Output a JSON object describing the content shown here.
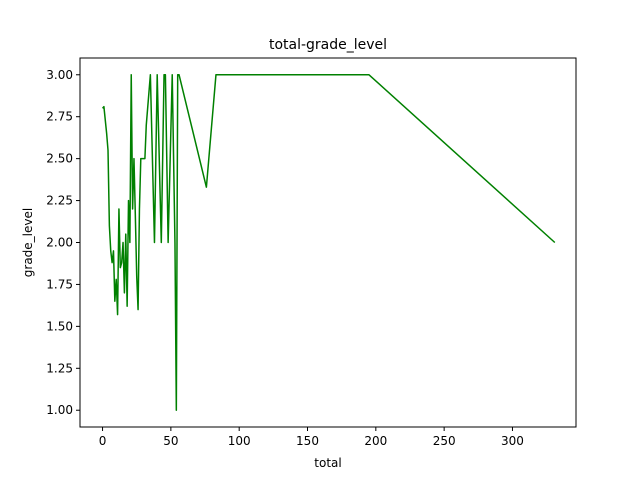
{
  "chart_data": {
    "type": "line",
    "title": "total-grade_level",
    "xlabel": "total",
    "ylabel": "grade_level",
    "xlim": [
      -16.5,
      346.5
    ],
    "ylim": [
      0.9,
      3.1
    ],
    "xticks": [
      0,
      50,
      100,
      150,
      200,
      250,
      300
    ],
    "xtick_labels": [
      "0",
      "50",
      "100",
      "150",
      "200",
      "250",
      "300"
    ],
    "yticks": [
      1.0,
      1.25,
      1.5,
      1.75,
      2.0,
      2.25,
      2.5,
      2.75,
      3.0
    ],
    "ytick_labels": [
      "1.00",
      "1.25",
      "1.50",
      "1.75",
      "2.00",
      "2.25",
      "2.50",
      "2.75",
      "3.00"
    ],
    "grid": false,
    "color": "#008000",
    "series": [
      {
        "x": [
          0,
          1,
          3,
          4,
          5,
          6,
          7,
          8,
          9,
          10,
          11,
          12,
          13,
          14,
          15,
          16,
          17,
          18,
          19,
          20,
          21,
          22,
          23,
          24,
          25,
          26,
          27,
          28,
          30,
          31,
          32,
          35,
          38,
          40,
          43,
          45,
          46,
          48,
          51,
          53,
          54,
          55,
          56,
          76,
          83,
          195,
          331
        ],
        "y": [
          2.8,
          2.81,
          2.65,
          2.55,
          2.1,
          1.95,
          1.88,
          1.95,
          1.65,
          1.78,
          1.57,
          2.2,
          1.85,
          1.88,
          2.0,
          1.7,
          2.05,
          1.62,
          2.25,
          2.0,
          3.0,
          2.2,
          2.5,
          2.16,
          1.8,
          1.6,
          2.2,
          2.5,
          2.5,
          2.5,
          2.7,
          3.0,
          2.0,
          3.0,
          2.0,
          3.0,
          3.0,
          2.0,
          3.0,
          2.0,
          1.0,
          3.0,
          3.0,
          2.33,
          3.0,
          3.0,
          2.0
        ]
      }
    ]
  }
}
